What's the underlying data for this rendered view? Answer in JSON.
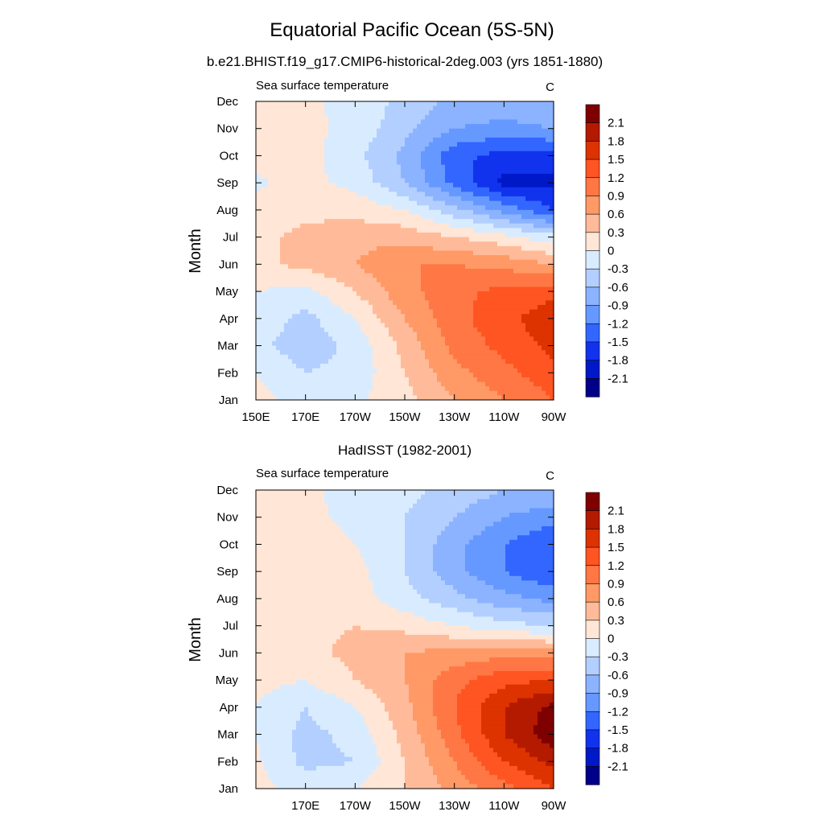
{
  "figure": {
    "title": "Equatorial Pacific Ocean (5S-5N)"
  },
  "panels": [
    {
      "title": "b.e21.BHIST.f19_g17.CMIP6-historical-2deg.003 (yrs 1851-1880)",
      "left_label": "Sea surface temperature",
      "right_label": "C",
      "ylabel": "Month"
    },
    {
      "title": "HadISST (1982-2001)",
      "left_label": "Sea surface temperature",
      "right_label": "C",
      "ylabel": "Month"
    }
  ],
  "chart_data": [
    {
      "type": "heatmap",
      "title": "b.e21.BHIST.f19_g17.CMIP6-historical-2deg.003 (yrs 1851-1880)",
      "subtitle": "Sea surface temperature",
      "units": "C",
      "xlabel": "",
      "ylabel": "Month",
      "xlim": [
        150,
        270
      ],
      "x_ticks": [
        {
          "lon": 150,
          "label": "150E"
        },
        {
          "lon": 170,
          "label": "170E"
        },
        {
          "lon": 190,
          "label": "170W"
        },
        {
          "lon": 210,
          "label": "150W"
        },
        {
          "lon": 230,
          "label": "130W"
        },
        {
          "lon": 250,
          "label": "110W"
        },
        {
          "lon": 270,
          "label": "90W"
        }
      ],
      "y_ticks": [
        "Jan",
        "Feb",
        "Mar",
        "Apr",
        "May",
        "Jun",
        "Jul",
        "Aug",
        "Sep",
        "Oct",
        "Nov",
        "Dec"
      ],
      "lon": [
        150,
        170,
        190,
        210,
        230,
        250,
        270
      ],
      "months": [
        "Jan",
        "Feb",
        "Mar",
        "Apr",
        "May",
        "Jun",
        "Jul",
        "Aug",
        "Sep",
        "Oct",
        "Nov",
        "Dec"
      ],
      "values": [
        [
          0.1,
          -0.1,
          -0.05,
          0.2,
          0.6,
          0.9,
          1.2
        ],
        [
          0.0,
          -0.3,
          -0.2,
          0.3,
          0.8,
          1.1,
          1.4
        ],
        [
          -0.2,
          -0.5,
          -0.2,
          0.4,
          1.0,
          1.3,
          1.6
        ],
        [
          -0.1,
          -0.4,
          0.0,
          0.6,
          1.1,
          1.4,
          1.7
        ],
        [
          0.0,
          -0.1,
          0.3,
          0.8,
          1.1,
          1.3,
          1.4
        ],
        [
          0.2,
          0.4,
          0.6,
          0.9,
          0.9,
          0.8,
          0.6
        ],
        [
          0.2,
          0.4,
          0.5,
          0.5,
          0.3,
          0.1,
          -0.2
        ],
        [
          0.1,
          0.2,
          0.2,
          0.0,
          -0.5,
          -1.0,
          -1.5
        ],
        [
          -0.05,
          0.1,
          -0.1,
          -0.6,
          -1.3,
          -1.9,
          -1.9
        ],
        [
          0.1,
          0.1,
          -0.2,
          -0.7,
          -1.4,
          -1.6,
          -1.6
        ],
        [
          0.2,
          0.1,
          -0.1,
          -0.5,
          -0.9,
          -1.0,
          -0.9
        ],
        [
          0.15,
          0.05,
          -0.1,
          -0.4,
          -0.7,
          -0.7,
          -0.6
        ]
      ],
      "contour_levels": [
        -2.1,
        -1.8,
        -1.5,
        -1.2,
        -0.9,
        -0.6,
        -0.3,
        0,
        0.3,
        0.6,
        0.9,
        1.2,
        1.5,
        1.8,
        2.1
      ]
    },
    {
      "type": "heatmap",
      "title": "HadISST (1982-2001)",
      "subtitle": "Sea surface temperature",
      "units": "C",
      "xlabel": "",
      "ylabel": "Month",
      "xlim": [
        150,
        270
      ],
      "x_ticks": [
        {
          "lon": 170,
          "label": "170E"
        },
        {
          "lon": 190,
          "label": "170W"
        },
        {
          "lon": 210,
          "label": "150W"
        },
        {
          "lon": 230,
          "label": "130W"
        },
        {
          "lon": 250,
          "label": "110W"
        },
        {
          "lon": 270,
          "label": "90W"
        }
      ],
      "y_ticks": [
        "Jan",
        "Feb",
        "Mar",
        "Apr",
        "May",
        "Jun",
        "Jul",
        "Aug",
        "Sep",
        "Oct",
        "Nov",
        "Dec"
      ],
      "lon": [
        150,
        170,
        190,
        210,
        230,
        250,
        270
      ],
      "months": [
        "Jan",
        "Feb",
        "Mar",
        "Apr",
        "May",
        "Jun",
        "Jul",
        "Aug",
        "Sep",
        "Oct",
        "Nov",
        "Dec"
      ],
      "values": [
        [
          0.1,
          -0.1,
          0.0,
          0.3,
          0.7,
          1.1,
          1.5
        ],
        [
          0.05,
          -0.4,
          -0.3,
          0.3,
          0.9,
          1.5,
          1.9
        ],
        [
          0.0,
          -0.4,
          -0.2,
          0.4,
          1.1,
          1.8,
          2.3
        ],
        [
          0.0,
          -0.3,
          0.0,
          0.5,
          1.2,
          1.8,
          2.2
        ],
        [
          0.1,
          0.0,
          0.3,
          0.6,
          1.1,
          1.4,
          1.5
        ],
        [
          0.2,
          0.2,
          0.4,
          0.6,
          0.7,
          0.8,
          0.7
        ],
        [
          0.15,
          0.2,
          0.3,
          0.2,
          0.0,
          -0.2,
          -0.3
        ],
        [
          0.0,
          0.2,
          0.15,
          -0.2,
          -0.5,
          -0.8,
          -1.0
        ],
        [
          0.1,
          0.3,
          0.1,
          -0.3,
          -0.8,
          -1.2,
          -1.5
        ],
        [
          0.2,
          0.2,
          0.0,
          -0.3,
          -0.8,
          -1.2,
          -1.5
        ],
        [
          0.2,
          0.1,
          -0.1,
          -0.3,
          -0.6,
          -0.9,
          -1.1
        ],
        [
          0.1,
          0.05,
          -0.1,
          -0.2,
          -0.4,
          -0.6,
          -0.6
        ]
      ],
      "contour_levels": [
        -2.1,
        -1.8,
        -1.5,
        -1.2,
        -0.9,
        -0.6,
        -0.3,
        0,
        0.3,
        0.6,
        0.9,
        1.2,
        1.5,
        1.8,
        2.1
      ]
    }
  ],
  "colorbar": {
    "labels": [
      "2.1",
      "1.8",
      "1.5",
      "1.2",
      "0.9",
      "0.6",
      "0.3",
      "0",
      "-0.3",
      "-0.6",
      "-0.9",
      "-1.2",
      "-1.5",
      "-1.8",
      "-2.1"
    ],
    "colors": [
      "#7f0000",
      "#b31a00",
      "#dd3300",
      "#ff5522",
      "#ff7744",
      "#ff9966",
      "#ffbb99",
      "#ffe6d6",
      "#d9ecff",
      "#b3cfff",
      "#8cb3ff",
      "#6699ff",
      "#3366ff",
      "#1133ee",
      "#0019c8",
      "#000088"
    ]
  }
}
